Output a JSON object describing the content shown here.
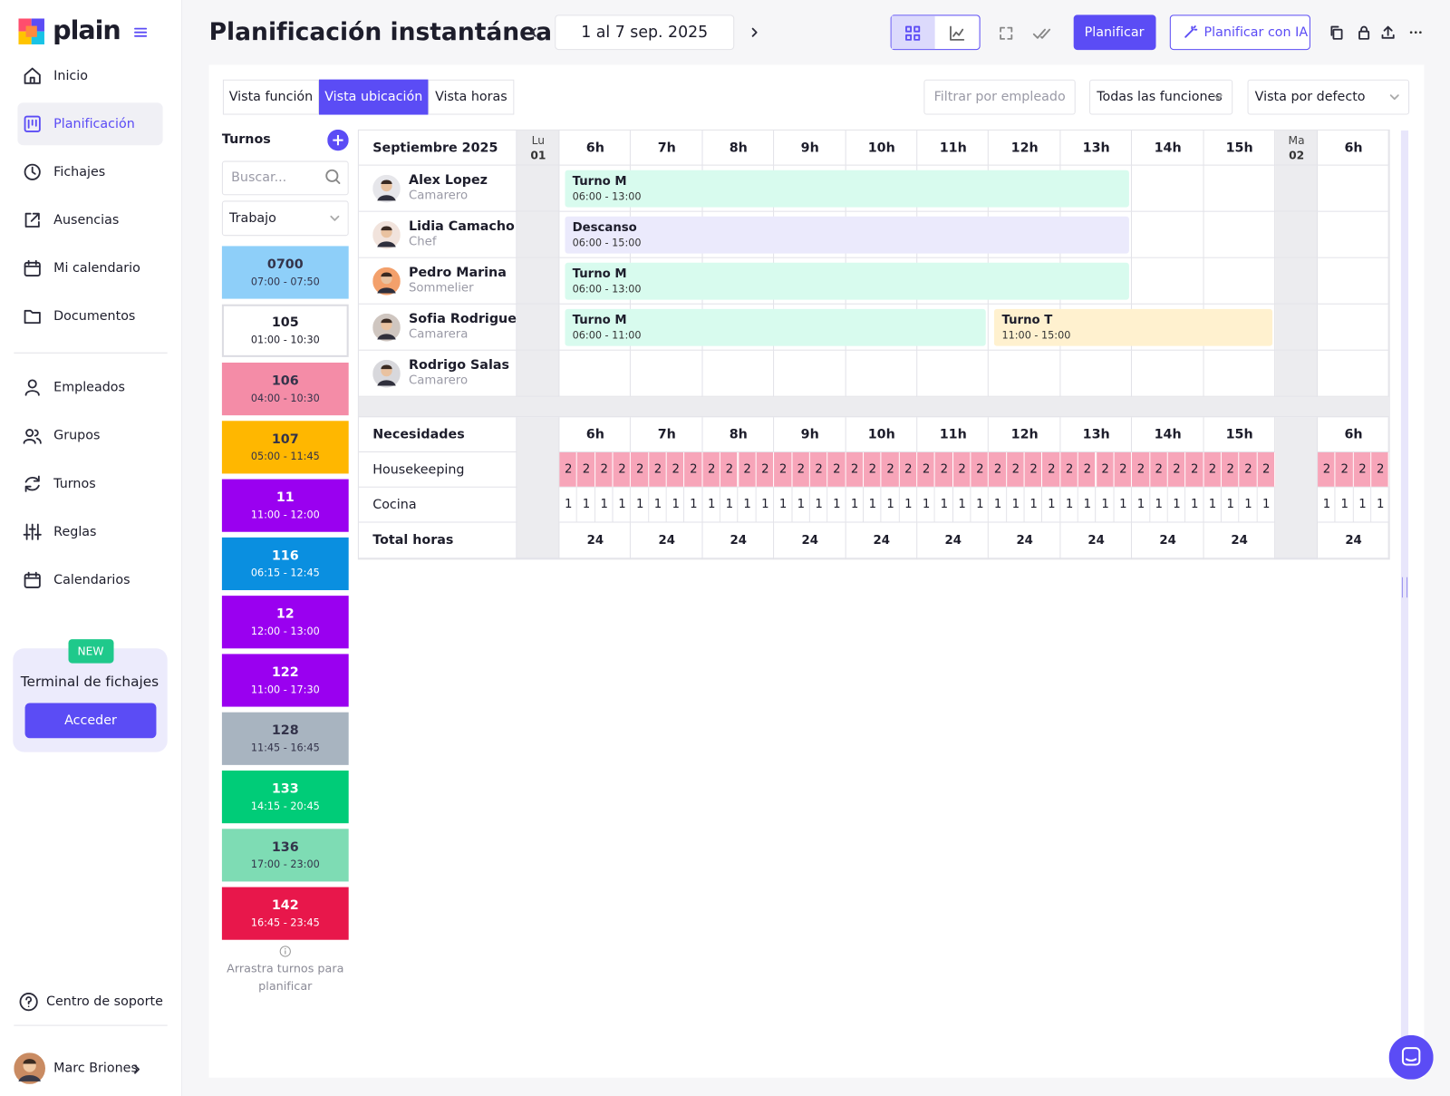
{
  "sidebar": {
    "logo": "plain",
    "nav": [
      {
        "label": "Inicio"
      },
      {
        "label": "Planificación",
        "active": true
      },
      {
        "label": "Fichajes"
      },
      {
        "label": "Ausencias"
      },
      {
        "label": "Mi calendario"
      },
      {
        "label": "Documentos"
      }
    ],
    "nav_secondary": [
      {
        "label": "Empleados"
      },
      {
        "label": "Grupos"
      },
      {
        "label": "Turnos"
      },
      {
        "label": "Reglas"
      },
      {
        "label": "Calendarios"
      }
    ],
    "promo": {
      "badge": "NEW",
      "title": "Terminal de fichajes",
      "button": "Acceder"
    },
    "support": "Centro de soporte",
    "user": "Marc Briones"
  },
  "header": {
    "title": "Planificación instantánea",
    "date_range": "1 al 7 sep. 2025",
    "buttons": [
      "Planificar",
      "Planificar con IA"
    ]
  },
  "toolbar": {
    "tabs": [
      {
        "label": "Vista función"
      },
      {
        "label": "Vista ubicación",
        "active": true
      },
      {
        "label": "Vista horas"
      }
    ],
    "filter_placeholder": "Filtrar por empleado",
    "selects": [
      "Todas las funciones",
      "Vista por defecto"
    ]
  },
  "shifts_panel": {
    "title": "Turnos",
    "search_placeholder": "Buscar...",
    "type_select": "Trabajo",
    "items": [
      {
        "code": "0700",
        "time": "07:00 - 07:50",
        "color": "#8ecff9"
      },
      {
        "code": "105",
        "time": "01:00 - 10:30",
        "color": "#ffffff"
      },
      {
        "code": "106",
        "time": "04:00 - 10:30",
        "color": "#f48ca7"
      },
      {
        "code": "107",
        "time": "05:00 - 11:45",
        "color": "#ffb700"
      },
      {
        "code": "11",
        "time": "11:00 - 12:00",
        "color": "#9a00f0"
      },
      {
        "code": "116",
        "time": "06:15 - 12:45",
        "color": "#0a8fe0"
      },
      {
        "code": "12",
        "time": "12:00 - 13:00",
        "color": "#9a00f0"
      },
      {
        "code": "122",
        "time": "11:00 - 17:30",
        "color": "#9a00f0"
      },
      {
        "code": "128",
        "time": "11:45 - 16:45",
        "color": "#a8b4c0"
      },
      {
        "code": "133",
        "time": "14:15 - 20:45",
        "color": "#00cc78"
      },
      {
        "code": "136",
        "time": "17:00 - 23:00",
        "color": "#7edcb4"
      },
      {
        "code": "142",
        "time": "16:45 - 23:45",
        "color": "#e8174b"
      }
    ],
    "hint": "Arrastra turnos para planificar"
  },
  "schedule": {
    "month": "Septiembre 2025",
    "days": [
      {
        "weekday": "Lu",
        "day": "01",
        "hours": [
          "6h",
          "7h",
          "8h",
          "9h",
          "10h",
          "11h",
          "12h",
          "13h",
          "14h",
          "15h"
        ]
      },
      {
        "weekday": "Ma",
        "day": "02",
        "hours": [
          "6h"
        ]
      }
    ],
    "employees": [
      {
        "name": "Alex Lopez",
        "role": "Camarero",
        "shifts": [
          {
            "label": "Turno M",
            "time": "06:00 - 13:00",
            "color": "#d8fbee"
          }
        ]
      },
      {
        "name": "Lidia Camacho",
        "role": "Chef",
        "shifts": [
          {
            "label": "Descanso",
            "time": "06:00 - 15:00",
            "color": "#ebeafc"
          }
        ]
      },
      {
        "name": "Pedro Marina",
        "role": "Sommelier",
        "shifts": [
          {
            "label": "Turno M",
            "time": "06:00 - 13:00",
            "color": "#d8fbee"
          }
        ]
      },
      {
        "name": "Sofia Rodriguez",
        "role": "Camarera",
        "shifts": [
          {
            "label": "Turno M",
            "time": "06:00 - 11:00",
            "color": "#d8fbee"
          },
          {
            "label": "Turno T",
            "time": "11:00 - 15:00",
            "color": "#fff1cf"
          }
        ]
      },
      {
        "name": "Rodrigo Salas",
        "role": "Camarero",
        "shifts": []
      }
    ],
    "needs": {
      "title": "Necesidades",
      "rows": [
        {
          "label": "Housekeeping",
          "color": "#f7a5b9",
          "values": [
            [
              2,
              2,
              2,
              2,
              2,
              2,
              2,
              2,
              2,
              2,
              2,
              2,
              2,
              2,
              2,
              2,
              2,
              2,
              2,
              2,
              2,
              2,
              2,
              2,
              2,
              2,
              2,
              2,
              2,
              2,
              2,
              2,
              2,
              2,
              2,
              2,
              2,
              2,
              2,
              2
            ],
            [
              2,
              2,
              2,
              2
            ]
          ]
        },
        {
          "label": "Cocina",
          "color": "#ffffff",
          "values": [
            [
              1,
              1,
              1,
              1,
              1,
              1,
              1,
              1,
              1,
              1,
              1,
              1,
              1,
              1,
              1,
              1,
              1,
              1,
              1,
              1,
              1,
              1,
              1,
              1,
              1,
              1,
              1,
              1,
              1,
              1,
              1,
              1,
              1,
              1,
              1,
              1,
              1,
              1,
              1,
              1
            ],
            [
              1,
              1,
              1,
              1
            ]
          ]
        }
      ]
    },
    "total": {
      "label": "Total horas",
      "values": [
        [
          24,
          24,
          24,
          24,
          24,
          24,
          24,
          24,
          24,
          24
        ],
        [
          24
        ]
      ]
    }
  }
}
